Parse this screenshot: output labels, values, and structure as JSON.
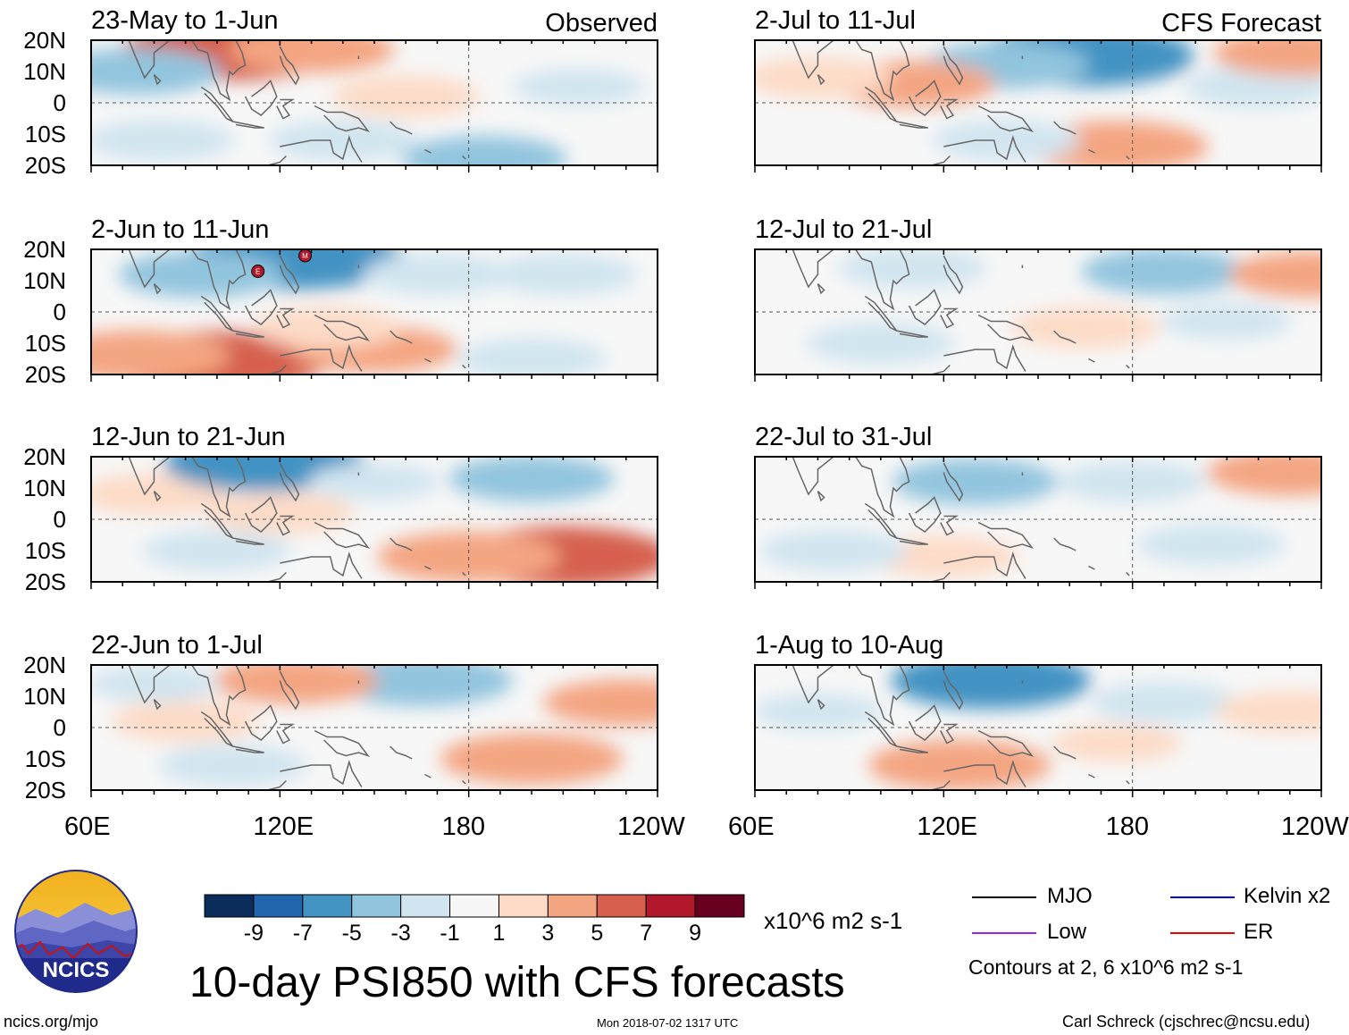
{
  "panels": [
    {
      "title": "23-May to 1-Jun",
      "label": "Observed"
    },
    {
      "title": "2-Jun to 11-Jun",
      "label": ""
    },
    {
      "title": "12-Jun to 21-Jun",
      "label": ""
    },
    {
      "title": "22-Jun to 1-Jul",
      "label": ""
    },
    {
      "title": "2-Jul to 11-Jul",
      "label": "CFS Forecast"
    },
    {
      "title": "12-Jul to 21-Jul",
      "label": ""
    },
    {
      "title": "22-Jul to 31-Jul",
      "label": ""
    },
    {
      "title": "1-Aug to 10-Aug",
      "label": ""
    }
  ],
  "chart_data": {
    "type": "heatmap",
    "title": "10-day PSI850 with CFS forecasts",
    "y_tick_labels": [
      "20N",
      "10N",
      "0",
      "10S",
      "20S"
    ],
    "x_tick_labels": [
      "60E",
      "120E",
      "180",
      "120W"
    ],
    "lat_range": [
      -20,
      20
    ],
    "lon_range": [
      60,
      240
    ],
    "colorbar": {
      "tick_labels": [
        "-9",
        "-7",
        "-5",
        "-3",
        "-1",
        "1",
        "3",
        "5",
        "7",
        "9"
      ],
      "colors": [
        "#0c2c5c",
        "#2166ac",
        "#4393c3",
        "#92c5de",
        "#d1e5f0",
        "#f7f7f7",
        "#fddbc7",
        "#f4a582",
        "#d6604d",
        "#b2182b",
        "#67001f"
      ],
      "units": "x10^6 m2 s-1"
    },
    "legend": [
      {
        "label": "MJO",
        "color": "#000000"
      },
      {
        "label": "Low",
        "color": "#a020f0"
      },
      {
        "label": "Kelvin x2",
        "color": "#0000dd"
      },
      {
        "label": "ER",
        "color": "#ee0000"
      }
    ],
    "contour_note": "Contours at 2, 6 x10^6 m2 s-1",
    "markers": [
      {
        "panel": "2-Jun to 11-Jun",
        "label": "E",
        "lon": 113,
        "lat": 13
      },
      {
        "panel": "2-Jun to 11-Jun",
        "label": "M",
        "lon": 128,
        "lat": 18
      }
    ],
    "anomaly_blobs": [
      {
        "panel": 0,
        "lon": 105,
        "lat": 17,
        "value": 6
      },
      {
        "panel": 0,
        "lon": 130,
        "lat": 17,
        "value": 3
      },
      {
        "panel": 0,
        "lon": 75,
        "lat": 10,
        "value": -3
      },
      {
        "panel": 0,
        "lon": 140,
        "lat": -12,
        "value": -2
      },
      {
        "panel": 0,
        "lon": 185,
        "lat": -18,
        "value": -3
      },
      {
        "panel": 0,
        "lon": 82,
        "lat": -12,
        "value": -2
      },
      {
        "panel": 0,
        "lon": 215,
        "lat": 5,
        "value": -1
      },
      {
        "panel": 0,
        "lon": 160,
        "lat": 2,
        "value": 2
      },
      {
        "panel": 1,
        "lon": 125,
        "lat": 17,
        "value": -6
      },
      {
        "panel": 1,
        "lon": 95,
        "lat": 12,
        "value": -3
      },
      {
        "panel": 1,
        "lon": 170,
        "lat": 12,
        "value": -2
      },
      {
        "panel": 1,
        "lon": 210,
        "lat": 12,
        "value": -2
      },
      {
        "panel": 1,
        "lon": 100,
        "lat": -16,
        "value": 6
      },
      {
        "panel": 1,
        "lon": 75,
        "lat": -14,
        "value": 4
      },
      {
        "panel": 1,
        "lon": 150,
        "lat": -12,
        "value": 3
      },
      {
        "panel": 1,
        "lon": 135,
        "lat": -5,
        "value": 2
      },
      {
        "panel": 1,
        "lon": 200,
        "lat": -15,
        "value": -2
      },
      {
        "panel": 2,
        "lon": 210,
        "lat": -12,
        "value": 6
      },
      {
        "panel": 2,
        "lon": 180,
        "lat": -12,
        "value": 4
      },
      {
        "panel": 2,
        "lon": 120,
        "lat": 2,
        "value": 2
      },
      {
        "panel": 2,
        "lon": 80,
        "lat": 8,
        "value": 2
      },
      {
        "panel": 2,
        "lon": 200,
        "lat": 13,
        "value": -3
      },
      {
        "panel": 2,
        "lon": 115,
        "lat": 18,
        "value": -5
      },
      {
        "panel": 2,
        "lon": 100,
        "lat": -10,
        "value": -2
      },
      {
        "panel": 2,
        "lon": 150,
        "lat": 12,
        "value": -1
      },
      {
        "panel": 3,
        "lon": 165,
        "lat": 15,
        "value": -4
      },
      {
        "panel": 3,
        "lon": 200,
        "lat": -10,
        "value": 4
      },
      {
        "panel": 3,
        "lon": 125,
        "lat": 15,
        "value": 3
      },
      {
        "panel": 3,
        "lon": 90,
        "lat": 2,
        "value": 2
      },
      {
        "panel": 3,
        "lon": 230,
        "lat": 8,
        "value": 3
      },
      {
        "panel": 3,
        "lon": 105,
        "lat": -12,
        "value": -2
      },
      {
        "panel": 3,
        "lon": 80,
        "lat": 14,
        "value": -1
      },
      {
        "panel": 4,
        "lon": 165,
        "lat": 15,
        "value": -6
      },
      {
        "panel": 4,
        "lon": 140,
        "lat": 12,
        "value": -3
      },
      {
        "panel": 4,
        "lon": 175,
        "lat": -14,
        "value": 4
      },
      {
        "panel": 4,
        "lon": 110,
        "lat": 6,
        "value": 3
      },
      {
        "panel": 4,
        "lon": 80,
        "lat": 8,
        "value": 2
      },
      {
        "panel": 4,
        "lon": 140,
        "lat": -12,
        "value": -2
      },
      {
        "panel": 4,
        "lon": 220,
        "lat": 5,
        "value": -2
      },
      {
        "panel": 4,
        "lon": 232,
        "lat": 16,
        "value": 3
      },
      {
        "panel": 5,
        "lon": 190,
        "lat": 13,
        "value": -3
      },
      {
        "panel": 5,
        "lon": 110,
        "lat": 14,
        "value": -2
      },
      {
        "panel": 5,
        "lon": 165,
        "lat": -5,
        "value": 2
      },
      {
        "panel": 5,
        "lon": 237,
        "lat": 12,
        "value": 3
      },
      {
        "panel": 5,
        "lon": 100,
        "lat": -10,
        "value": -2
      },
      {
        "panel": 5,
        "lon": 210,
        "lat": -3,
        "value": -1
      },
      {
        "panel": 6,
        "lon": 130,
        "lat": 12,
        "value": -3
      },
      {
        "panel": 6,
        "lon": 180,
        "lat": 12,
        "value": -2
      },
      {
        "panel": 6,
        "lon": 120,
        "lat": -12,
        "value": 2
      },
      {
        "panel": 6,
        "lon": 230,
        "lat": 15,
        "value": 3
      },
      {
        "panel": 6,
        "lon": 85,
        "lat": -10,
        "value": -2
      },
      {
        "panel": 6,
        "lon": 205,
        "lat": -8,
        "value": -2
      },
      {
        "panel": 7,
        "lon": 135,
        "lat": 15,
        "value": -5
      },
      {
        "panel": 7,
        "lon": 125,
        "lat": -12,
        "value": 4
      },
      {
        "panel": 7,
        "lon": 190,
        "lat": 8,
        "value": -2
      },
      {
        "panel": 7,
        "lon": 80,
        "lat": 5,
        "value": -1
      },
      {
        "panel": 7,
        "lon": 230,
        "lat": 5,
        "value": 2
      },
      {
        "panel": 7,
        "lon": 175,
        "lat": -5,
        "value": 1
      }
    ]
  },
  "footer": {
    "url": "ncics.org/mjo",
    "timestamp": "Mon 2018-07-02 1317 UTC",
    "credit": "Carl Schreck (cjschrec@ncsu.edu)",
    "logo_text": "NCICS"
  }
}
